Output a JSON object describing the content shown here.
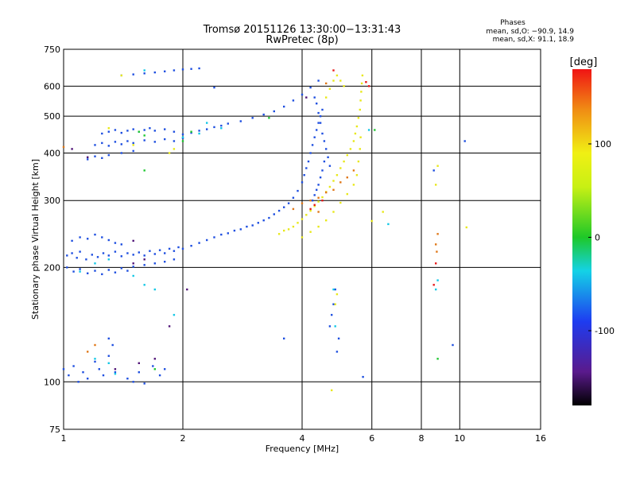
{
  "chart_data": {
    "type": "scatter",
    "title": "Tromsø 20151126 13:30:00−13:31:43",
    "subtitle": "RwPretec (8p)",
    "xlabel": "Frequency [MHz]",
    "ylabel": "Stationary phase Virtual Height [km]",
    "xscale": "log",
    "yscale": "log",
    "xlim": [
      1,
      16
    ],
    "ylim": [
      75,
      750
    ],
    "xticks": [
      1,
      2,
      4,
      6,
      8,
      10,
      16
    ],
    "yticks": [
      75,
      100,
      200,
      300,
      400,
      500,
      600,
      750
    ],
    "grid": true,
    "info": {
      "heading": "Phases",
      "line1": "mean, sd,O: −90.9, 14.9",
      "line2": "mean, sd,X:  91.1, 18.9"
    },
    "colorbar": {
      "label": "[deg]",
      "min": -180,
      "max": 180,
      "ticks": [
        100,
        0,
        -100
      ]
    },
    "series": [
      {
        "name": "",
        "color": "#1f4fe0",
        "phase": -95,
        "points": [
          [
            1.02,
            215
          ],
          [
            1.05,
            218
          ],
          [
            1.08,
            212
          ],
          [
            1.1,
            220
          ],
          [
            1.14,
            210
          ],
          [
            1.18,
            216
          ],
          [
            1.22,
            213
          ],
          [
            1.26,
            218
          ],
          [
            1.3,
            215
          ],
          [
            1.35,
            220
          ],
          [
            1.4,
            214
          ],
          [
            1.45,
            218
          ],
          [
            1.5,
            216
          ],
          [
            1.55,
            219
          ],
          [
            1.6,
            215
          ],
          [
            1.65,
            221
          ],
          [
            1.7,
            217
          ],
          [
            1.75,
            222
          ],
          [
            1.8,
            218
          ],
          [
            1.85,
            224
          ],
          [
            1.9,
            221
          ],
          [
            1.95,
            226
          ],
          [
            2.0,
            224
          ],
          [
            2.1,
            228
          ],
          [
            2.2,
            232
          ],
          [
            2.3,
            236
          ],
          [
            2.4,
            240
          ],
          [
            2.5,
            244
          ],
          [
            2.6,
            246
          ],
          [
            2.7,
            250
          ],
          [
            2.8,
            252
          ],
          [
            2.9,
            256
          ],
          [
            3.0,
            258
          ],
          [
            3.1,
            262
          ],
          [
            3.2,
            266
          ],
          [
            3.3,
            270
          ],
          [
            3.4,
            276
          ],
          [
            3.5,
            282
          ],
          [
            3.6,
            288
          ],
          [
            3.7,
            295
          ],
          [
            3.8,
            305
          ],
          [
            3.9,
            318
          ],
          [
            4.0,
            335
          ],
          [
            4.05,
            350
          ],
          [
            4.1,
            365
          ],
          [
            4.15,
            380
          ],
          [
            4.2,
            400
          ],
          [
            4.25,
            420
          ],
          [
            4.3,
            440
          ],
          [
            4.35,
            460
          ],
          [
            4.4,
            480
          ],
          [
            4.45,
            500
          ],
          [
            4.5,
            520
          ],
          [
            1.02,
            200
          ],
          [
            1.06,
            195
          ],
          [
            1.1,
            198
          ],
          [
            1.15,
            193
          ],
          [
            1.2,
            196
          ],
          [
            1.25,
            192
          ],
          [
            1.3,
            197
          ],
          [
            1.35,
            194
          ],
          [
            1.4,
            199
          ],
          [
            1.45,
            196
          ],
          [
            1.5,
            201
          ],
          [
            1.6,
            203
          ],
          [
            1.7,
            205
          ],
          [
            1.8,
            207
          ],
          [
            1.9,
            210
          ],
          [
            1.05,
            235
          ],
          [
            1.1,
            240
          ],
          [
            1.15,
            238
          ],
          [
            1.2,
            244
          ],
          [
            1.25,
            240
          ],
          [
            1.3,
            236
          ],
          [
            1.35,
            232
          ],
          [
            1.4,
            230
          ],
          [
            1.0,
            108
          ],
          [
            1.03,
            104
          ],
          [
            1.06,
            110
          ],
          [
            1.09,
            100
          ],
          [
            1.12,
            106
          ],
          [
            1.15,
            102
          ],
          [
            1.2,
            113
          ],
          [
            1.23,
            108
          ],
          [
            1.26,
            104
          ],
          [
            1.3,
            117
          ],
          [
            1.35,
            106
          ],
          [
            1.45,
            102
          ],
          [
            1.5,
            100
          ],
          [
            1.55,
            106
          ],
          [
            1.6,
            99
          ],
          [
            1.68,
            110
          ],
          [
            1.75,
            104
          ],
          [
            1.8,
            108
          ],
          [
            1.4,
            640
          ],
          [
            1.5,
            644
          ],
          [
            1.6,
            648
          ],
          [
            1.7,
            652
          ],
          [
            1.8,
            656
          ],
          [
            1.9,
            660
          ],
          [
            2.0,
            664
          ],
          [
            2.1,
            666
          ],
          [
            2.2,
            668
          ],
          [
            1.25,
            450
          ],
          [
            1.3,
            455
          ],
          [
            1.35,
            460
          ],
          [
            1.4,
            452
          ],
          [
            1.45,
            458
          ],
          [
            1.5,
            462
          ],
          [
            1.55,
            455
          ],
          [
            1.6,
            460
          ],
          [
            1.65,
            465
          ],
          [
            1.7,
            458
          ],
          [
            1.8,
            462
          ],
          [
            1.9,
            455
          ],
          [
            2.0,
            448
          ],
          [
            2.1,
            452
          ],
          [
            2.2,
            458
          ],
          [
            2.3,
            462
          ],
          [
            2.4,
            468
          ],
          [
            2.5,
            472
          ],
          [
            2.6,
            478
          ],
          [
            2.8,
            485
          ],
          [
            3.0,
            495
          ],
          [
            3.2,
            505
          ],
          [
            3.4,
            515
          ],
          [
            3.6,
            530
          ],
          [
            3.8,
            550
          ],
          [
            4.0,
            570
          ],
          [
            4.2,
            595
          ],
          [
            4.4,
            620
          ],
          [
            1.2,
            420
          ],
          [
            1.25,
            425
          ],
          [
            1.3,
            418
          ],
          [
            1.35,
            428
          ],
          [
            1.4,
            422
          ],
          [
            1.45,
            430
          ],
          [
            1.5,
            425
          ],
          [
            1.6,
            432
          ],
          [
            1.7,
            428
          ],
          [
            1.8,
            435
          ],
          [
            1.9,
            430
          ],
          [
            2.0,
            438
          ],
          [
            1.15,
            385
          ],
          [
            1.2,
            392
          ],
          [
            1.25,
            388
          ],
          [
            1.3,
            395
          ],
          [
            1.4,
            400
          ],
          [
            1.5,
            405
          ],
          [
            4.3,
            560
          ],
          [
            4.35,
            540
          ],
          [
            4.4,
            510
          ],
          [
            4.45,
            480
          ],
          [
            4.5,
            450
          ],
          [
            4.55,
            430
          ],
          [
            4.6,
            410
          ],
          [
            4.65,
            390
          ],
          [
            4.7,
            370
          ],
          [
            4.25,
            300
          ],
          [
            4.3,
            310
          ],
          [
            4.35,
            320
          ],
          [
            4.4,
            330
          ],
          [
            4.45,
            345
          ],
          [
            4.5,
            360
          ],
          [
            4.55,
            380
          ],
          [
            4.7,
            140
          ],
          [
            4.75,
            150
          ],
          [
            4.8,
            160
          ],
          [
            4.85,
            175
          ],
          [
            4.9,
            120
          ],
          [
            4.95,
            130
          ],
          [
            5.7,
            103
          ],
          [
            8.6,
            360
          ],
          [
            9.6,
            125
          ],
          [
            10.3,
            430
          ],
          [
            2.4,
            595
          ],
          [
            3.6,
            130
          ],
          [
            1.3,
            130
          ],
          [
            1.33,
            125
          ]
        ]
      },
      {
        "name": "",
        "color": "#e8e81a",
        "phase": 110,
        "points": [
          [
            3.5,
            245
          ],
          [
            3.6,
            250
          ],
          [
            3.7,
            252
          ],
          [
            3.8,
            256
          ],
          [
            3.9,
            262
          ],
          [
            4.0,
            268
          ],
          [
            4.1,
            275
          ],
          [
            4.2,
            282
          ],
          [
            4.3,
            290
          ],
          [
            4.4,
            298
          ],
          [
            4.5,
            306
          ],
          [
            4.6,
            316
          ],
          [
            4.7,
            326
          ],
          [
            4.8,
            338
          ],
          [
            4.9,
            350
          ],
          [
            5.0,
            365
          ],
          [
            5.1,
            380
          ],
          [
            5.2,
            395
          ],
          [
            5.3,
            410
          ],
          [
            5.4,
            430
          ],
          [
            5.45,
            450
          ],
          [
            5.5,
            470
          ],
          [
            5.55,
            495
          ],
          [
            5.6,
            520
          ],
          [
            5.62,
            550
          ],
          [
            5.64,
            580
          ],
          [
            5.66,
            610
          ],
          [
            5.68,
            640
          ],
          [
            4.0,
            240
          ],
          [
            4.2,
            248
          ],
          [
            4.4,
            256
          ],
          [
            4.6,
            266
          ],
          [
            4.8,
            280
          ],
          [
            5.0,
            296
          ],
          [
            5.2,
            312
          ],
          [
            5.4,
            330
          ],
          [
            5.5,
            350
          ],
          [
            5.55,
            380
          ],
          [
            5.6,
            410
          ],
          [
            5.62,
            440
          ],
          [
            4.6,
            560
          ],
          [
            4.7,
            590
          ],
          [
            4.8,
            620
          ],
          [
            4.9,
            640
          ],
          [
            5.0,
            620
          ],
          [
            5.1,
            600
          ],
          [
            4.85,
            160
          ],
          [
            4.9,
            170
          ],
          [
            4.75,
            95
          ],
          [
            6.0,
            265
          ],
          [
            6.4,
            280
          ],
          [
            8.8,
            370
          ],
          [
            8.7,
            330
          ],
          [
            10.4,
            255
          ],
          [
            1.4,
            640
          ],
          [
            1.5,
            420
          ],
          [
            1.9,
            410
          ],
          [
            1.85,
            400
          ],
          [
            1.3,
            465
          ]
        ]
      },
      {
        "name": "",
        "color": "#14c8e6",
        "phase": -40,
        "points": [
          [
            1.1,
            195
          ],
          [
            1.2,
            205
          ],
          [
            1.3,
            210
          ],
          [
            1.5,
            190
          ],
          [
            1.6,
            180
          ],
          [
            1.7,
            175
          ],
          [
            2.0,
            440
          ],
          [
            2.2,
            450
          ],
          [
            2.5,
            465
          ],
          [
            2.3,
            480
          ],
          [
            1.6,
            660
          ],
          [
            4.8,
            175
          ],
          [
            4.85,
            140
          ],
          [
            8.8,
            185
          ],
          [
            8.7,
            175
          ],
          [
            1.9,
            150
          ],
          [
            1.2,
            115
          ],
          [
            1.3,
            112
          ],
          [
            1.35,
            105
          ],
          [
            5.9,
            460
          ],
          [
            6.6,
            260
          ]
        ]
      },
      {
        "name": "",
        "color": "#e07818",
        "phase": 140,
        "points": [
          [
            3.8,
            285
          ],
          [
            4.0,
            295
          ],
          [
            4.2,
            300
          ],
          [
            4.4,
            305
          ],
          [
            4.6,
            315
          ],
          [
            4.8,
            320
          ],
          [
            5.0,
            335
          ],
          [
            5.2,
            345
          ],
          [
            5.4,
            360
          ],
          [
            1.0,
            415
          ],
          [
            4.6,
            610
          ],
          [
            8.8,
            245
          ],
          [
            8.7,
            230
          ],
          [
            8.75,
            220
          ],
          [
            1.15,
            120
          ],
          [
            1.2,
            125
          ],
          [
            4.4,
            280
          ]
        ]
      },
      {
        "name": "",
        "color": "#20c832",
        "phase": 50,
        "points": [
          [
            1.55,
            455
          ],
          [
            1.6,
            445
          ],
          [
            2.0,
            430
          ],
          [
            2.1,
            455
          ],
          [
            6.1,
            460
          ],
          [
            8.8,
            115
          ],
          [
            1.6,
            360
          ],
          [
            1.7,
            108
          ],
          [
            3.3,
            495
          ]
        ]
      },
      {
        "name": "",
        "color": "#e81a1a",
        "phase": 175,
        "points": [
          [
            4.2,
            285
          ],
          [
            4.3,
            292
          ],
          [
            4.5,
            300
          ],
          [
            5.8,
            615
          ],
          [
            5.9,
            600
          ],
          [
            4.8,
            660
          ],
          [
            8.7,
            205
          ],
          [
            8.6,
            180
          ]
        ]
      },
      {
        "name": "",
        "color": "#501478",
        "phase": -160,
        "points": [
          [
            1.05,
            410
          ],
          [
            1.15,
            390
          ],
          [
            1.5,
            205
          ],
          [
            1.6,
            210
          ],
          [
            1.35,
            108
          ],
          [
            1.55,
            112
          ],
          [
            1.7,
            115
          ],
          [
            1.85,
            140
          ],
          [
            2.05,
            175
          ],
          [
            1.5,
            235
          ],
          [
            4.1,
            560
          ]
        ]
      }
    ]
  }
}
